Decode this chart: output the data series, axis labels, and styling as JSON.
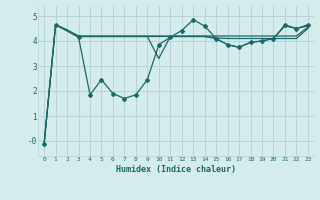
{
  "xlabel": "Humidex (Indice chaleur)",
  "bg_color": "#d4ecec",
  "grid_color": "#b8d4d4",
  "line_color": "#1a6868",
  "xlim": [
    -0.5,
    23.5
  ],
  "ylim": [
    -0.6,
    5.4
  ],
  "yticks": [
    0,
    1,
    2,
    3,
    4,
    5
  ],
  "ytick_labels": [
    "-0",
    "1",
    "2",
    "3",
    "4",
    "5"
  ],
  "xticks": [
    0,
    1,
    2,
    3,
    4,
    5,
    6,
    7,
    8,
    9,
    10,
    11,
    12,
    13,
    14,
    15,
    16,
    17,
    18,
    19,
    20,
    21,
    22,
    23
  ],
  "series": [
    {
      "x": [
        0,
        1,
        2,
        3,
        4,
        5,
        6,
        7,
        8,
        9,
        10,
        11,
        12,
        13,
        14,
        15,
        16,
        17,
        18,
        19,
        20,
        21,
        22,
        23
      ],
      "y": [
        -0.1,
        4.65,
        4.45,
        4.2,
        4.2,
        4.2,
        4.2,
        4.2,
        4.2,
        4.2,
        4.2,
        4.2,
        4.2,
        4.2,
        4.2,
        4.2,
        4.2,
        4.2,
        4.2,
        4.2,
        4.2,
        4.2,
        4.2,
        4.55
      ],
      "marker": false,
      "lw": 0.9
    },
    {
      "x": [
        0,
        1,
        2,
        3,
        4,
        5,
        6,
        7,
        8,
        9,
        10,
        11,
        12,
        13,
        14,
        15,
        16,
        17,
        18,
        19,
        20,
        21,
        22,
        23
      ],
      "y": [
        -0.1,
        4.65,
        4.42,
        4.18,
        4.18,
        4.18,
        4.18,
        4.18,
        4.18,
        4.18,
        4.18,
        4.18,
        4.18,
        4.18,
        4.18,
        4.12,
        4.1,
        4.1,
        4.1,
        4.1,
        4.1,
        4.1,
        4.1,
        4.5
      ],
      "marker": false,
      "lw": 0.9
    },
    {
      "x": [
        1,
        2,
        3,
        4,
        5,
        6,
        7,
        8,
        9,
        10,
        11,
        12,
        13,
        14,
        15,
        16,
        17,
        18,
        19,
        20,
        21,
        22,
        23
      ],
      "y": [
        4.65,
        4.42,
        4.18,
        4.18,
        4.18,
        4.18,
        4.18,
        4.18,
        4.18,
        3.3,
        4.18,
        4.18,
        4.18,
        4.18,
        4.1,
        3.85,
        3.75,
        3.95,
        4.0,
        4.1,
        4.6,
        4.5,
        4.6
      ],
      "marker": false,
      "lw": 0.9
    },
    {
      "x": [
        0,
        1,
        3,
        4,
        5,
        6,
        7,
        8,
        9,
        10,
        11,
        12,
        13,
        14,
        15,
        16,
        17,
        18,
        19,
        20,
        21,
        22,
        23
      ],
      "y": [
        -0.1,
        4.65,
        4.15,
        1.85,
        2.45,
        1.9,
        1.7,
        1.85,
        2.45,
        3.85,
        4.15,
        4.42,
        4.85,
        4.6,
        4.1,
        3.85,
        3.75,
        3.95,
        4.0,
        4.1,
        4.65,
        4.5,
        4.65
      ],
      "marker": true,
      "lw": 0.9
    }
  ]
}
